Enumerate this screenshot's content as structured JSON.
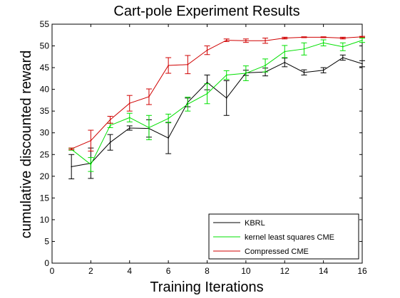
{
  "chart_data": {
    "type": "line",
    "title": "Cart-pole Experiment Results",
    "xlabel": "Training Iterations",
    "ylabel": "cumulative discounted reward",
    "xlim": [
      0,
      16
    ],
    "ylim": [
      0,
      55
    ],
    "xticks": [
      0,
      2,
      4,
      6,
      8,
      10,
      12,
      14,
      16
    ],
    "yticks": [
      0,
      5,
      10,
      15,
      20,
      25,
      30,
      35,
      40,
      45,
      50,
      55
    ],
    "grid": false,
    "legend_position": "bottom-right",
    "x": [
      1,
      2,
      3,
      4,
      5,
      6,
      7,
      8,
      9,
      10,
      11,
      12,
      13,
      14,
      15,
      16
    ],
    "series": [
      {
        "name": "KBRL",
        "color": "#000000",
        "values": [
          22.2,
          23.0,
          27.8,
          31.1,
          31.0,
          28.8,
          37.0,
          41.6,
          38.0,
          43.8,
          44.0,
          46.2,
          43.9,
          44.4,
          47.3,
          45.9
        ],
        "errors": [
          2.8,
          3.5,
          1.8,
          0.5,
          2.0,
          3.6,
          1.0,
          1.7,
          4.0,
          0.6,
          0.9,
          1.0,
          0.6,
          0.6,
          0.6,
          0.7
        ]
      },
      {
        "name": "kernel least squares CME",
        "color": "#00e000",
        "values": [
          26.2,
          22.7,
          31.7,
          33.5,
          31.2,
          33.3,
          36.6,
          39.0,
          43.3,
          43.7,
          45.5,
          48.7,
          49.3,
          50.7,
          49.8,
          51.3
        ],
        "errors": [
          0.2,
          1.6,
          0.5,
          1.0,
          2.8,
          1.0,
          1.6,
          2.3,
          1.0,
          1.7,
          1.5,
          1.4,
          1.4,
          0.7,
          0.9,
          0.5
        ]
      },
      {
        "name": "Compressed CME",
        "color": "#d00000",
        "values": [
          26.3,
          28.2,
          33.0,
          36.8,
          38.3,
          45.5,
          45.7,
          49.0,
          51.3,
          51.2,
          51.2,
          51.8,
          52.0,
          52.0,
          51.8,
          52.1
        ],
        "errors": [
          0.2,
          2.4,
          0.8,
          1.8,
          1.8,
          1.8,
          2.1,
          1.0,
          0.3,
          0.4,
          0.6,
          0.2,
          0.1,
          0.1,
          0.2,
          0.1
        ]
      }
    ]
  }
}
